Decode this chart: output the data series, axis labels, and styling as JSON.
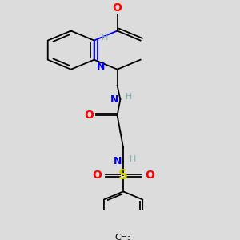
{
  "bg": "#dcdcdc",
  "fig_w": 3.0,
  "fig_h": 3.0,
  "dpi": 100,
  "xlim": [
    0.0,
    1.0
  ],
  "ylim": [
    0.0,
    1.0
  ]
}
